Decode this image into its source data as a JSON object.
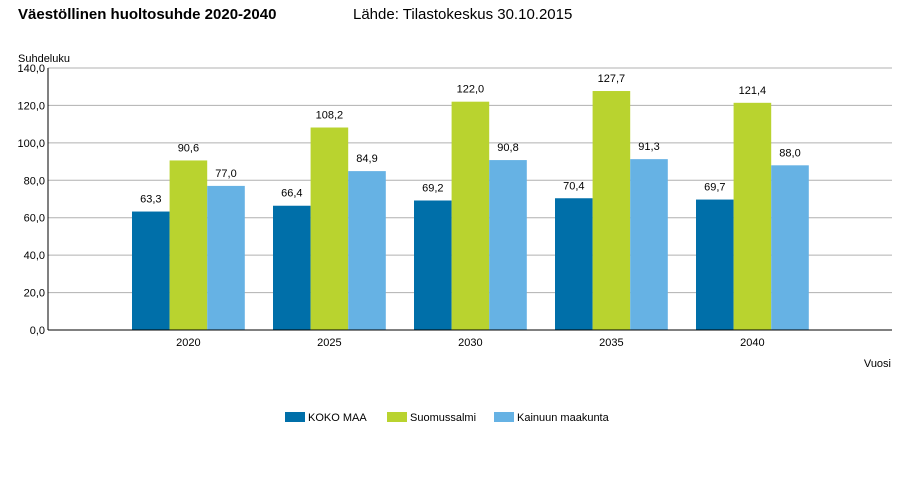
{
  "header": {
    "title": "Väestöllinen huoltosuhde 2020-2040",
    "source": "Lähde: Tilastokeskus 30.10.2015"
  },
  "chart_data": {
    "type": "bar",
    "ylabel": "Suhdeluku",
    "xlabel": "Vuosi",
    "ylim": [
      0,
      140
    ],
    "yticks": [
      0,
      20,
      40,
      60,
      80,
      100,
      120,
      140
    ],
    "ytick_labels": [
      "0,0",
      "20,0",
      "40,0",
      "60,0",
      "80,0",
      "100,0",
      "120,0",
      "140,0"
    ],
    "grid": true,
    "legend_position": "bottom-center",
    "categories": [
      "2020",
      "2025",
      "2030",
      "2035",
      "2040"
    ],
    "series": [
      {
        "name": "KOKO MAA",
        "color": "#006fa9",
        "values": [
          63.3,
          66.4,
          69.2,
          70.4,
          69.7
        ],
        "labels": [
          "63,3",
          "66,4",
          "69,2",
          "70,4",
          "69,7"
        ]
      },
      {
        "name": "Suomussalmi",
        "color": "#b9d32f",
        "values": [
          90.6,
          108.2,
          122.0,
          127.7,
          121.4
        ],
        "labels": [
          "90,6",
          "108,2",
          "122,0",
          "127,7",
          "121,4"
        ]
      },
      {
        "name": "Kainuun maakunta",
        "color": "#66b2e4",
        "values": [
          77.0,
          84.9,
          90.8,
          91.3,
          88.0
        ],
        "labels": [
          "77,0",
          "84,9",
          "90,8",
          "91,3",
          "88,0"
        ]
      }
    ]
  }
}
